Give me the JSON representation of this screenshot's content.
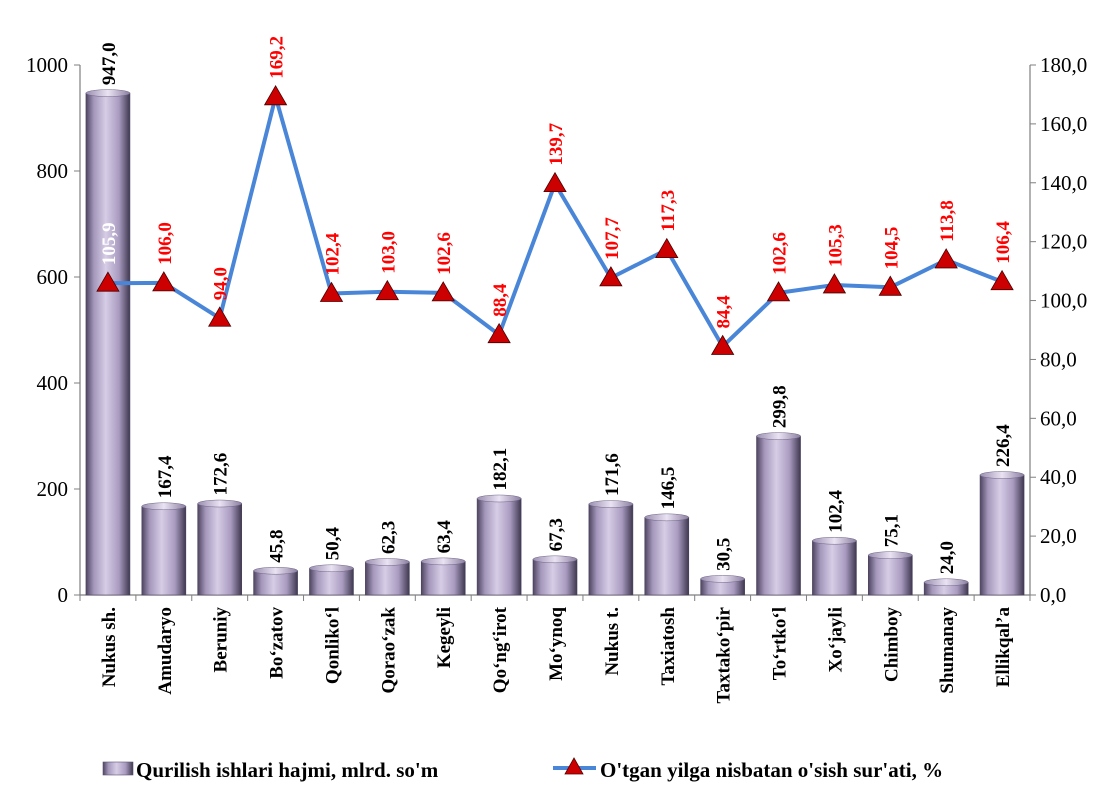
{
  "chart_data": {
    "type": "bar",
    "categories": [
      "Nukus sh.",
      "Amudaryo",
      "Beruniy",
      "Bo‘zatov",
      "Qonliko‘l",
      "Qorao‘zak",
      "Kegeyli",
      "Qo‘ng‘irot",
      "Mo‘ynoq",
      "Nukus t.",
      "Taxiatosh",
      "Taxtako‘pir",
      "To‘rtko‘l",
      "Xo‘jayli",
      "Chimboy",
      "Shumanay",
      "Ellikqal’a"
    ],
    "series": [
      {
        "name": "Qurilish ishlari hajmi, mlrd. so'm",
        "type": "bar",
        "axis": "left",
        "values": [
          947.0,
          167.4,
          172.6,
          45.8,
          50.4,
          62.3,
          63.4,
          182.1,
          67.3,
          171.6,
          146.5,
          30.5,
          299.8,
          102.4,
          75.1,
          24.0,
          226.4
        ],
        "labels": [
          "947,0",
          "167,4",
          "172,6",
          "45,8",
          "50,4",
          "62,3",
          "63,4",
          "182,1",
          "67,3",
          "171,6",
          "146,5",
          "30,5",
          "299,8",
          "102,4",
          "75,1",
          "24,0",
          "226,4"
        ],
        "color": "#b4a7c9"
      },
      {
        "name": "O'tgan yilga nisbatan o'sish sur'ati, %",
        "type": "line",
        "axis": "right",
        "values": [
          105.9,
          106.0,
          94.0,
          169.2,
          102.4,
          103.0,
          102.6,
          88.4,
          139.7,
          107.7,
          117.3,
          84.4,
          102.6,
          105.3,
          104.5,
          113.8,
          106.4
        ],
        "labels": [
          "105,9",
          "106,0",
          "94,0",
          "169,2",
          "102,4",
          "103,0",
          "102,6",
          "88,4",
          "139,7",
          "107,7",
          "117,3",
          "84,4",
          "102,6",
          "105,3",
          "104,5",
          "113,8",
          "106,4"
        ],
        "color": "#4a86d8",
        "marker_color": "#cc0000",
        "label_color": "#ff0000"
      }
    ],
    "y_left": {
      "min": 0,
      "max": 1000,
      "ticks": [
        "0",
        "200",
        "400",
        "600",
        "800",
        "1000"
      ]
    },
    "y_right": {
      "min": 0,
      "max": 180,
      "ticks": [
        "0,0",
        "20,0",
        "40,0",
        "60,0",
        "80,0",
        "100,0",
        "120,0",
        "140,0",
        "160,0",
        "180,0"
      ]
    },
    "grid": false,
    "legend": "bottom"
  }
}
